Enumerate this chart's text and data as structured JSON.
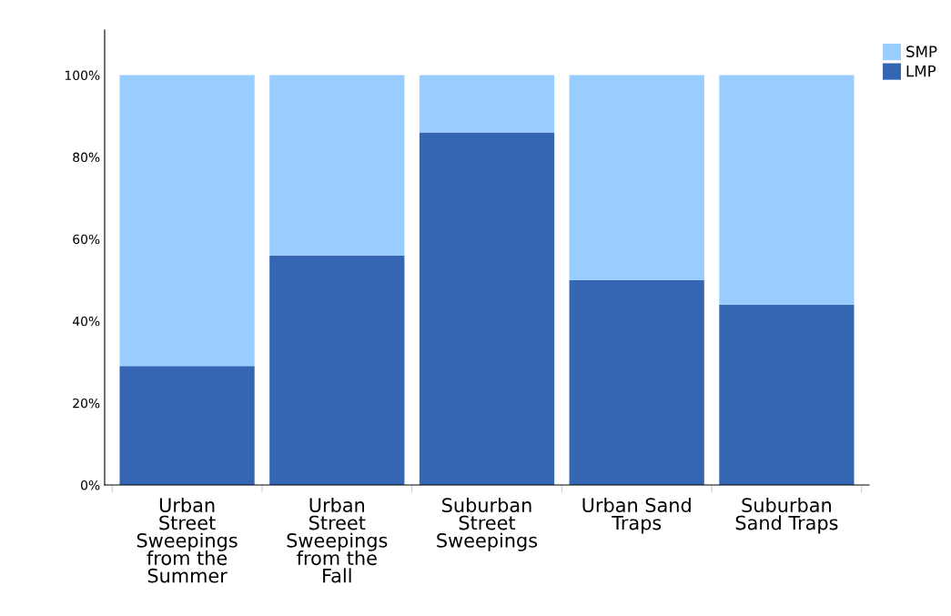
{
  "chart_data": {
    "type": "bar",
    "stacked": true,
    "categories": [
      "Urban\nStreet\nSweepings\nfrom the\nSummer",
      "Urban\nStreet\nSweepings\nfrom the\nFall",
      "Suburban\nStreet\nSweepings",
      "Urban Sand\nTraps",
      "Suburban\nSand Traps"
    ],
    "series": [
      {
        "name": "LMP",
        "color": "#3466b4",
        "values": [
          29,
          56,
          86,
          50,
          44
        ]
      },
      {
        "name": "SMP",
        "color": "#99ccff",
        "values": [
          71,
          44,
          14,
          50,
          56
        ]
      }
    ],
    "ylim": [
      0,
      111
    ],
    "yticks": [
      {
        "value": 0,
        "label": "0%"
      },
      {
        "value": 20,
        "label": "20%"
      },
      {
        "value": 40,
        "label": "40%"
      },
      {
        "value": 60,
        "label": "60%"
      },
      {
        "value": 80,
        "label": "80%"
      },
      {
        "value": 100,
        "label": "100%"
      }
    ],
    "grid": false,
    "legend": "top right"
  }
}
